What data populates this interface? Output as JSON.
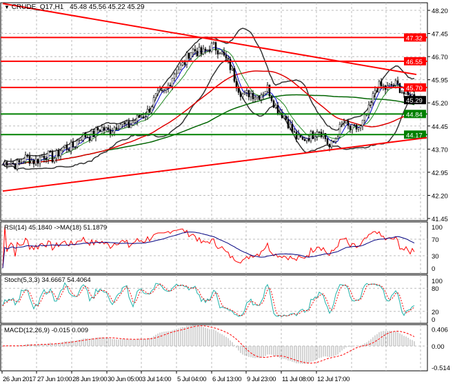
{
  "header": {
    "symbol": "CRUDE_Q17,H1",
    "ohlc": "45.48 45.56 45.22 45.29"
  },
  "price_axis": {
    "ticks": [
      "48.20",
      "47.45",
      "46.70",
      "45.95",
      "45.20",
      "44.45",
      "43.70",
      "42.95",
      "42.20",
      "41.45"
    ],
    "min": 41.45,
    "max": 48.2,
    "current": "45.29"
  },
  "levels": [
    {
      "label": "47.32",
      "value": 47.32,
      "color": "#ff0000"
    },
    {
      "label": "46.55",
      "value": 46.55,
      "color": "#ff0000"
    },
    {
      "label": "45.70",
      "value": 45.7,
      "color": "#ff0000"
    },
    {
      "label": "44.84",
      "value": 44.84,
      "color": "#008000"
    },
    {
      "label": "44.17",
      "value": 44.17,
      "color": "#008000"
    }
  ],
  "chart_data": {
    "type": "candlestick",
    "title": "CRUDE_Q17,H1",
    "price_waypoints": [
      [
        0,
        43.2
      ],
      [
        25,
        43.5
      ],
      [
        42,
        44.2
      ],
      [
        65,
        44.6
      ],
      [
        78,
        45.6
      ],
      [
        90,
        46.8
      ],
      [
        105,
        47.0
      ],
      [
        112,
        46.0
      ],
      [
        117,
        45.4
      ],
      [
        128,
        45.6
      ],
      [
        138,
        44.5
      ],
      [
        145,
        43.9
      ],
      [
        152,
        44.4
      ],
      [
        158,
        43.8
      ],
      [
        165,
        44.5
      ],
      [
        173,
        44.3
      ],
      [
        180,
        45.6
      ],
      [
        188,
        45.8
      ],
      [
        200,
        45.3
      ]
    ],
    "trendlines": [
      {
        "from": [
          0,
          48.42
        ],
        "to": [
          200,
          46.12
        ],
        "color": "#ff0000"
      },
      {
        "from": [
          0,
          42.34
        ],
        "to": [
          205,
          44.07
        ],
        "color": "#ff0000"
      }
    ]
  },
  "rsi": {
    "label": "RSI(14) 45.1840  ->MA(18) 51.1879",
    "ticks": [
      "100",
      "70",
      "30",
      "0"
    ]
  },
  "stoch": {
    "label": "Stoch(5,3,3) 34.6667 54.4064",
    "ticks": [
      "100",
      "80",
      "20",
      "0"
    ]
  },
  "macd": {
    "label": "MACD(12,26,9) -0.015 0.009",
    "ticks": [
      "0.406",
      "0.00",
      "-0.514"
    ]
  },
  "time_axis": [
    "26 Jun 2017",
    "27 Jun 10:00",
    "28 Jun 19:00",
    "30 Jun 05:00",
    "3 Jul 14:00",
    "5 Jul 04:00",
    "6 Jul 13:00",
    "9 Jul 23:00",
    "11 Jul 08:00",
    "12 Jul 17:00"
  ]
}
